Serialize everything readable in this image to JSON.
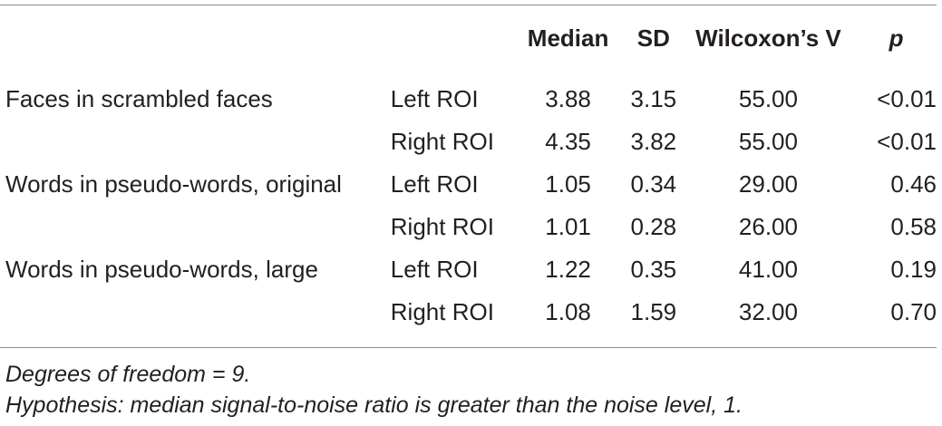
{
  "table": {
    "headers": {
      "condition": "",
      "roi": "",
      "median": "Median",
      "sd": "SD",
      "wilcoxon": "Wilcoxon’s V",
      "p": "p"
    },
    "rows": [
      {
        "condition": "Faces in scrambled faces",
        "roi": "Left ROI",
        "median": "3.88",
        "sd": "3.15",
        "wilcoxon": "55.00",
        "p": "<0.01"
      },
      {
        "condition": "",
        "roi": "Right ROI",
        "median": "4.35",
        "sd": "3.82",
        "wilcoxon": "55.00",
        "p": "<0.01"
      },
      {
        "condition": "Words in pseudo-words, original",
        "roi": "Left ROI",
        "median": "1.05",
        "sd": "0.34",
        "wilcoxon": "29.00",
        "p": "0.46"
      },
      {
        "condition": "",
        "roi": "Right ROI",
        "median": "1.01",
        "sd": "0.28",
        "wilcoxon": "26.00",
        "p": "0.58"
      },
      {
        "condition": "Words in pseudo-words, large",
        "roi": "Left ROI",
        "median": "1.22",
        "sd": "0.35",
        "wilcoxon": "41.00",
        "p": "0.19"
      },
      {
        "condition": "",
        "roi": "Right ROI",
        "median": "1.08",
        "sd": "1.59",
        "wilcoxon": "32.00",
        "p": "0.70"
      }
    ]
  },
  "notes": {
    "dof": "Degrees of freedom = 9.",
    "hypothesis": "Hypothesis: median signal-to-noise ratio is greater than the noise level, 1."
  }
}
